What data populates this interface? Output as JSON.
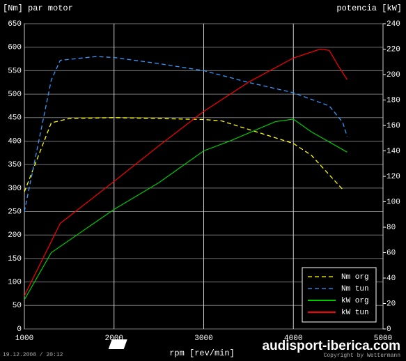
{
  "chart_data": {
    "type": "line",
    "y_label": "[Nm] par motor",
    "y2_label": "potencia [kW]",
    "x_label": "rpm [rev/min]",
    "watermark": "audisport-iberica.com",
    "date": "19.12.2008 / 20:12",
    "copyright": "Copyright by Wettermann",
    "xlim": [
      1000,
      5000
    ],
    "xticks": [
      1000,
      2000,
      3000,
      4000,
      5000
    ],
    "ylim": [
      0,
      650
    ],
    "yticks": [
      0,
      50,
      100,
      150,
      200,
      250,
      300,
      350,
      400,
      450,
      500,
      550,
      600,
      650
    ],
    "y2lim": [
      0,
      240
    ],
    "y2ticks": [
      0,
      20,
      40,
      60,
      80,
      100,
      120,
      140,
      160,
      180,
      200,
      220,
      240
    ],
    "grid": true,
    "legend": "bottom-right",
    "series": [
      {
        "name": "Nm org",
        "color": "#ffff00",
        "dashed": true,
        "x": [
          1000,
          1300,
          1500,
          2000,
          2500,
          3000,
          3200,
          3500,
          4000,
          4200,
          4550
        ],
        "values": [
          292,
          439,
          448,
          450,
          448,
          446,
          443,
          425,
          395,
          370,
          297
        ]
      },
      {
        "name": "Nm tun",
        "color": "#3399ff",
        "dashed": true,
        "x": [
          1000,
          1300,
          1400,
          1800,
          2000,
          2500,
          3000,
          3500,
          4000,
          4400,
          4550,
          4600
        ],
        "values": [
          250,
          530,
          572,
          580,
          578,
          565,
          550,
          525,
          503,
          475,
          440,
          410
        ]
      },
      {
        "name": "kW org",
        "color": "#00cc00",
        "axis": "y2",
        "x": [
          1000,
          1300,
          2000,
          2500,
          3000,
          3300,
          3800,
          4000,
          4200,
          4600
        ],
        "values": [
          23,
          60,
          94,
          115,
          140,
          148,
          163,
          165,
          155,
          139
        ]
      },
      {
        "name": "kW tun",
        "color": "#ff0000",
        "axis": "y2",
        "x": [
          1000,
          1400,
          2000,
          2500,
          3000,
          3500,
          4000,
          4300,
          4400,
          4500,
          4600
        ],
        "values": [
          26,
          83,
          116,
          144,
          171,
          194,
          213,
          220,
          219,
          207,
          196
        ]
      }
    ]
  }
}
